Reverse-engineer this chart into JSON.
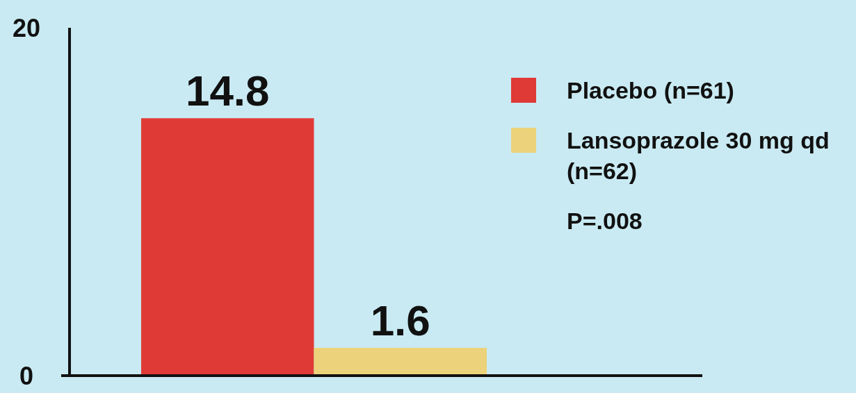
{
  "chart_data": {
    "type": "bar",
    "categories": [
      null
    ],
    "series": [
      {
        "name": "Placebo (n=61)",
        "color": "#e03a36",
        "values": [
          14.8
        ]
      },
      {
        "name": "Lansoprazole 30 mg qd (n=62)",
        "color": "#ecd27a",
        "values": [
          1.6
        ]
      }
    ],
    "ylim": [
      0,
      20
    ],
    "yticks": [
      0,
      20
    ],
    "data_labels": true,
    "legend": "right",
    "grid": false,
    "annotations": [
      "P=.008"
    ]
  }
}
